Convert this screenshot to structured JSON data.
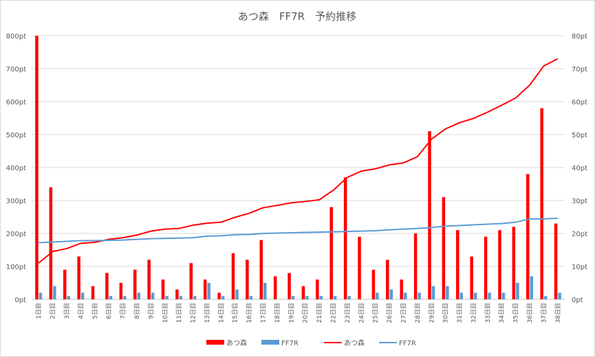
{
  "chart_data": {
    "type": "bar",
    "title": "あつ森　FF7R　予約推移",
    "categories": [
      "1日目",
      "2日目",
      "3日目",
      "4日目",
      "5日目",
      "6日目",
      "7日目",
      "8日目",
      "9日目",
      "10日目",
      "11日目",
      "12日目",
      "13日目",
      "14日目",
      "15日目",
      "16日目",
      "17日目",
      "18日目",
      "19日目",
      "20日目",
      "21日目",
      "22日目",
      "23日目",
      "24日目",
      "25日目",
      "26日目",
      "27日目",
      "28日目",
      "29日目",
      "30日目",
      "31日目",
      "32日目",
      "33日目",
      "34日目",
      "35日目",
      "36日目",
      "37日目",
      "38日目"
    ],
    "y_left": {
      "ticks": [
        "0pt",
        "100pt",
        "200pt",
        "300pt",
        "400pt",
        "500pt",
        "600pt",
        "700pt",
        "800pt"
      ],
      "lim": [
        0,
        800
      ]
    },
    "y_right": {
      "ticks": [
        "0pt",
        "10pt",
        "20pt",
        "30pt",
        "40pt",
        "50pt",
        "60pt",
        "70pt",
        "80pt"
      ],
      "lim": [
        0,
        80
      ]
    },
    "grid": true,
    "legend_position": "bottom",
    "series": [
      {
        "name": "あつ森",
        "kind": "bar",
        "axis": "left",
        "color": "#ff0000",
        "values": [
          800,
          340,
          90,
          130,
          40,
          80,
          50,
          90,
          120,
          60,
          30,
          110,
          60,
          20,
          140,
          120,
          180,
          70,
          80,
          40,
          60,
          280,
          370,
          190,
          90,
          120,
          60,
          200,
          510,
          310,
          210,
          130,
          190,
          210,
          220,
          380,
          580,
          230
        ]
      },
      {
        "name": "FF7R",
        "kind": "bar",
        "axis": "left",
        "color": "#5b9bd5",
        "values": [
          20,
          40,
          10,
          20,
          0,
          10,
          10,
          20,
          20,
          10,
          10,
          10,
          50,
          10,
          30,
          10,
          50,
          0,
          10,
          10,
          10,
          10,
          10,
          0,
          20,
          30,
          20,
          20,
          40,
          40,
          20,
          20,
          20,
          20,
          50,
          70,
          10,
          20
        ]
      },
      {
        "name": "あつ森",
        "kind": "line",
        "axis": "right",
        "color": "#ff0000",
        "values": [
          11,
          14.5,
          15.4,
          17,
          17.3,
          18.2,
          18.7,
          19.5,
          20.7,
          21.3,
          21.5,
          22.5,
          23.1,
          23.4,
          24.9,
          26.1,
          27.8,
          28.5,
          29.3,
          29.7,
          30.2,
          33.1,
          37,
          38.9,
          39.6,
          40.8,
          41.4,
          43.3,
          48.6,
          51.7,
          53.6,
          54.9,
          56.8,
          58.9,
          61.1,
          65,
          70.8,
          73
        ]
      },
      {
        "name": "FF7R",
        "kind": "line",
        "axis": "right",
        "color": "#5b9bd5",
        "values": [
          17.2,
          17.4,
          17.6,
          17.8,
          17.8,
          17.9,
          18.0,
          18.2,
          18.4,
          18.5,
          18.6,
          18.7,
          19.2,
          19.3,
          19.6,
          19.7,
          20.0,
          20.1,
          20.2,
          20.3,
          20.4,
          20.5,
          20.6,
          20.7,
          20.8,
          21.1,
          21.3,
          21.5,
          21.8,
          22.2,
          22.4,
          22.6,
          22.8,
          23.0,
          23.4,
          24.4,
          24.4,
          24.6
        ]
      }
    ]
  }
}
